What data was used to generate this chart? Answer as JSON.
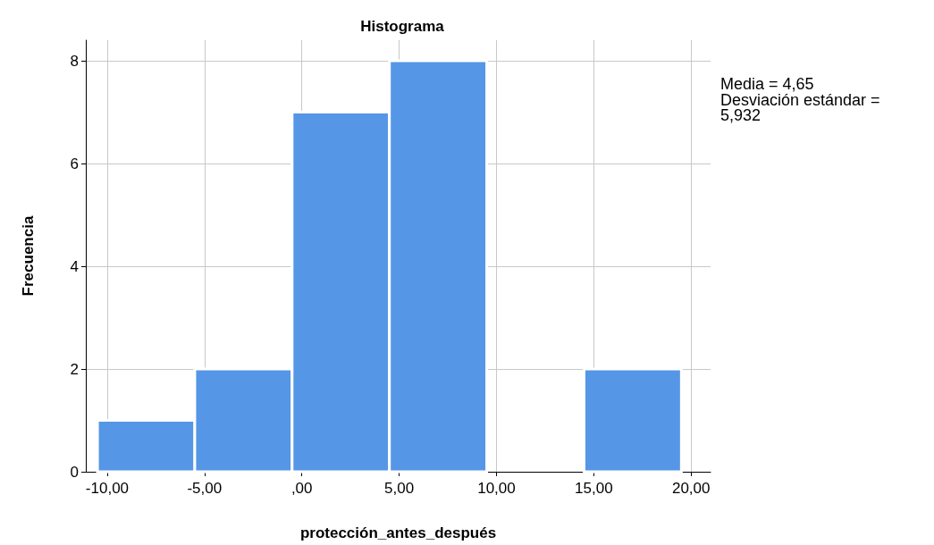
{
  "chart_data": {
    "type": "histogram",
    "title": "Histograma",
    "xlabel": "protección_antes_después",
    "ylabel": "Frecuencia",
    "bins": [
      -10.5,
      -5.5,
      -0.5,
      4.5,
      9.5,
      14.5,
      19.5
    ],
    "values": [
      1,
      2,
      7,
      8,
      0,
      2
    ],
    "color": "#5596e6",
    "xlim": [
      -11.1,
      21
    ],
    "xticks": [
      {
        "value": -10,
        "label": "-10,00"
      },
      {
        "value": -5,
        "label": "-5,00"
      },
      {
        "value": 0,
        "label": ",00"
      },
      {
        "value": 5,
        "label": "5,00"
      },
      {
        "value": 10,
        "label": "10,00"
      },
      {
        "value": 15,
        "label": "15,00"
      },
      {
        "value": 20,
        "label": "20,00"
      }
    ],
    "ylim": [
      0,
      8.4
    ],
    "yticks": [
      0,
      2,
      4,
      6,
      8
    ],
    "grid": true,
    "annotations": [
      "Media = 4,65",
      "Desviación estándar = 5,932"
    ]
  }
}
